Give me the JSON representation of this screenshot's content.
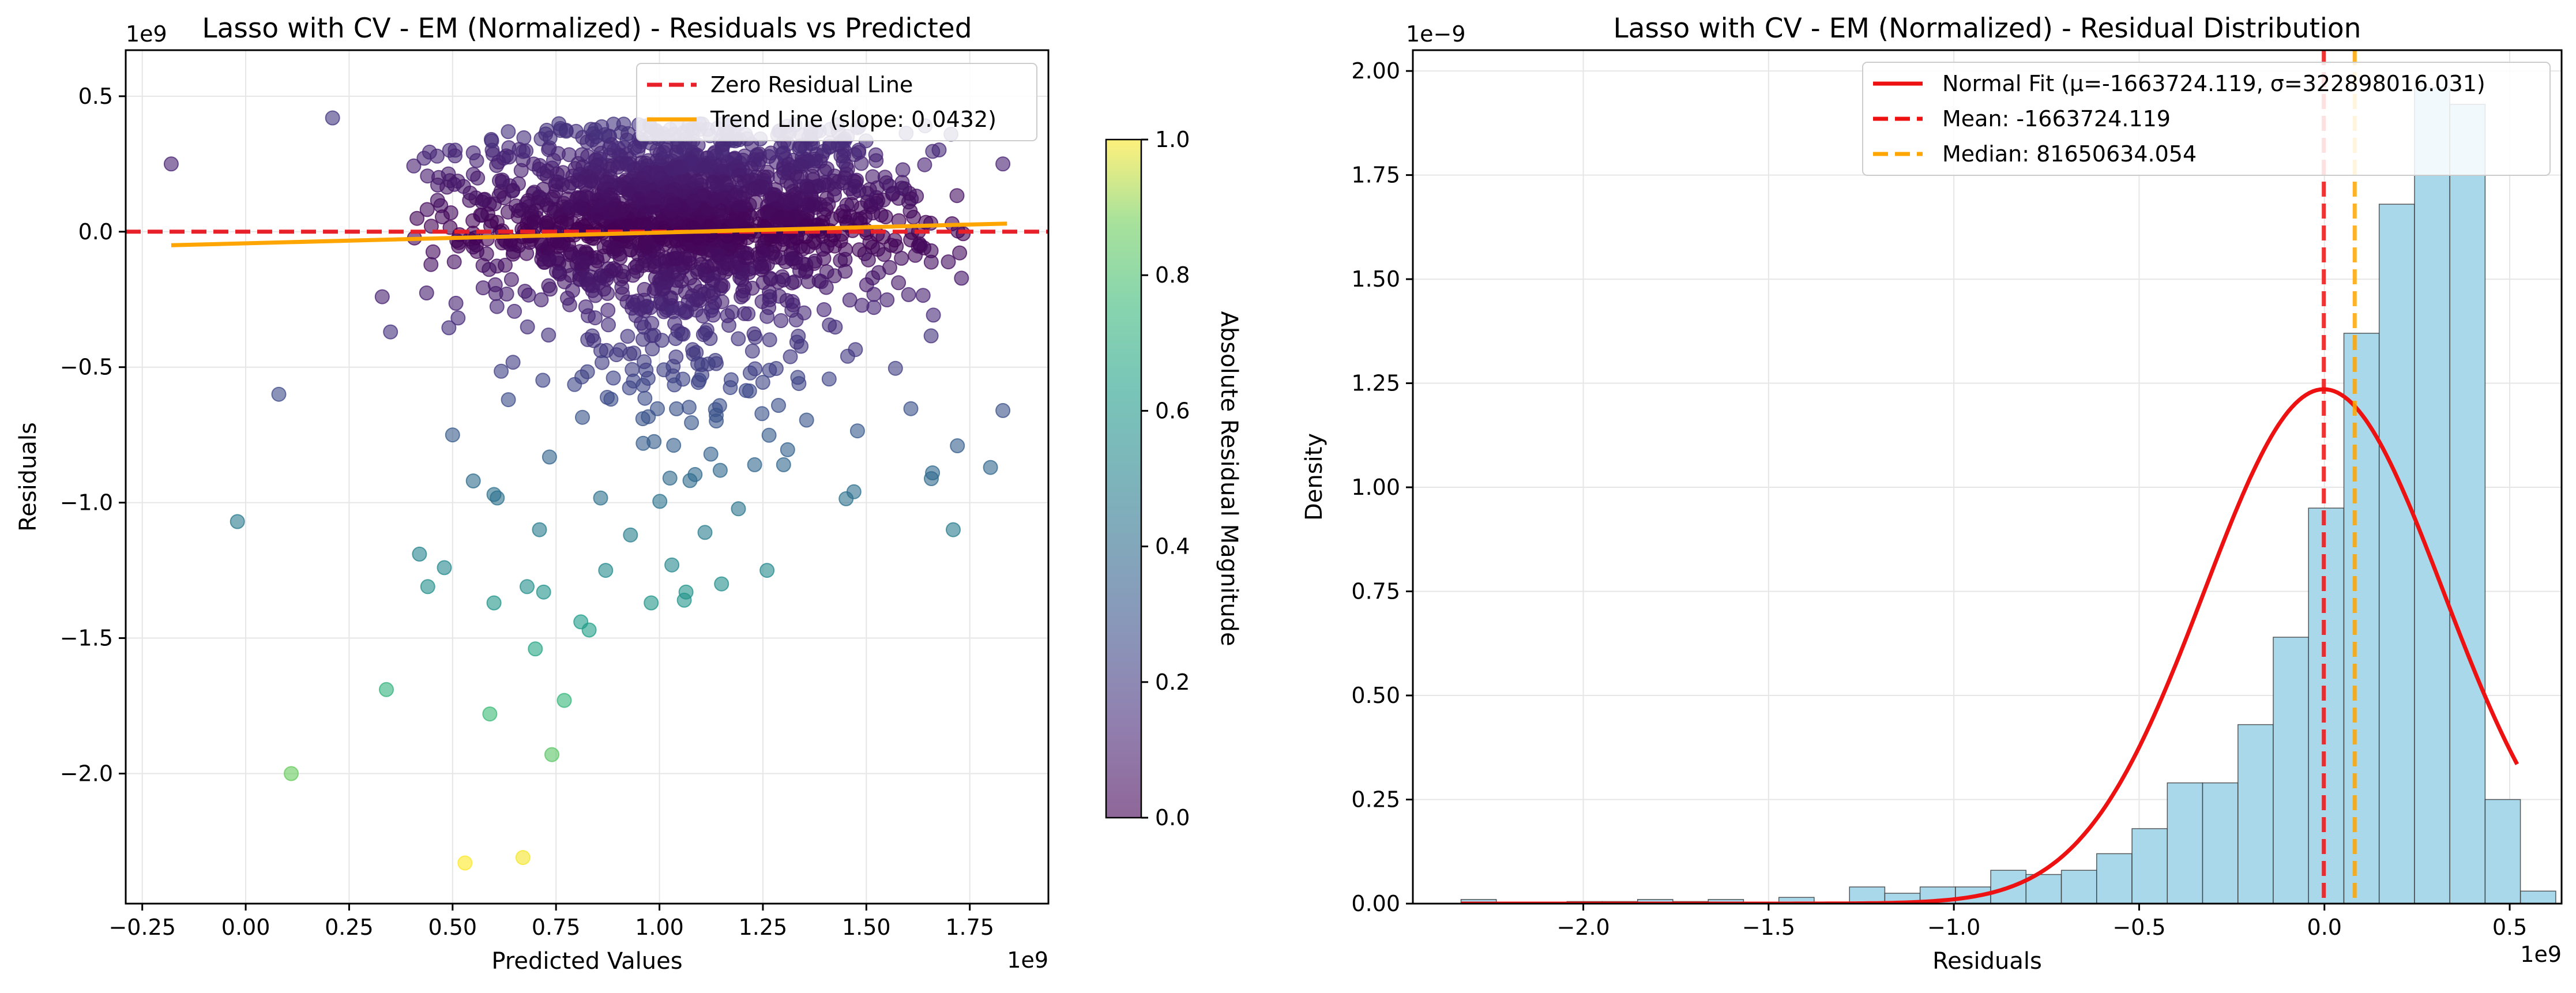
{
  "chart_data": [
    {
      "type": "scatter",
      "title": "Lasso with CV - EM (Normalized) - Residuals vs Predicted",
      "xlabel": "Predicted Values",
      "ylabel": "Residuals",
      "x_offset_label": "1e9",
      "y_offset_label": "1e9",
      "xlim": [
        -0.29,
        1.94
      ],
      "ylim": [
        -2.48,
        0.67
      ],
      "xticks": [
        -0.25,
        0.0,
        0.25,
        0.5,
        0.75,
        1.0,
        1.25,
        1.5,
        1.75
      ],
      "xtick_labels": [
        "−0.25",
        "0.00",
        "0.25",
        "0.50",
        "0.75",
        "1.00",
        "1.25",
        "1.50",
        "1.75"
      ],
      "yticks": [
        -2.0,
        -1.5,
        -1.0,
        -0.5,
        0.0,
        0.5
      ],
      "ytick_labels": [
        "−2.0",
        "−1.5",
        "−1.0",
        "−0.5",
        "0.0",
        "0.5"
      ],
      "grid": true,
      "legend_position": "top-right",
      "legend": [
        {
          "label": "Zero Residual Line",
          "color": "#e8202a",
          "style": "dashed"
        },
        {
          "label": "Trend Line (slope: 0.0432)",
          "color": "#ffa500",
          "style": "solid"
        }
      ],
      "zero_line_y": 0.0,
      "trend_line": {
        "x": [
          -0.18,
          1.84
        ],
        "y": [
          -0.05,
          0.03
        ]
      },
      "colorbar": {
        "label": "Absolute Residual Magnitude",
        "colormap": "viridis",
        "range": [
          0.0,
          1.0
        ],
        "ticks": [
          0.0,
          0.2,
          0.4,
          0.6,
          0.8,
          1.0
        ],
        "tick_labels": [
          "0.0",
          "0.2",
          "0.4",
          "0.6",
          "0.8",
          "1.0"
        ]
      },
      "outlier_points": [
        {
          "x": -0.18,
          "y": 0.25
        },
        {
          "x": 0.21,
          "y": 0.42
        },
        {
          "x": 0.08,
          "y": -0.6
        },
        {
          "x": -0.02,
          "y": -1.07
        },
        {
          "x": 0.11,
          "y": -2.0
        },
        {
          "x": 0.34,
          "y": -1.69
        },
        {
          "x": 0.53,
          "y": -2.33
        },
        {
          "x": 0.67,
          "y": -2.31
        },
        {
          "x": 0.74,
          "y": -1.93
        },
        {
          "x": 0.59,
          "y": -1.78
        },
        {
          "x": 0.77,
          "y": -1.73
        },
        {
          "x": 0.7,
          "y": -1.54
        },
        {
          "x": 0.81,
          "y": -1.44
        },
        {
          "x": 0.83,
          "y": -1.47
        },
        {
          "x": 0.98,
          "y": -1.37
        },
        {
          "x": 1.06,
          "y": -1.36
        },
        {
          "x": 1.15,
          "y": -1.3
        },
        {
          "x": 1.26,
          "y": -1.25
        },
        {
          "x": 1.03,
          "y": -1.23
        },
        {
          "x": 0.87,
          "y": -1.25
        },
        {
          "x": 0.6,
          "y": -1.37
        },
        {
          "x": 0.42,
          "y": -1.19
        },
        {
          "x": 0.48,
          "y": -1.24
        },
        {
          "x": 0.44,
          "y": -1.31
        },
        {
          "x": 0.68,
          "y": -1.31
        },
        {
          "x": 0.72,
          "y": -1.33
        },
        {
          "x": 0.71,
          "y": -1.1
        },
        {
          "x": 1.11,
          "y": -1.11
        },
        {
          "x": 1.71,
          "y": -1.1
        },
        {
          "x": 0.35,
          "y": -0.37
        },
        {
          "x": 0.33,
          "y": -0.24
        },
        {
          "x": 1.83,
          "y": -0.66
        },
        {
          "x": 1.83,
          "y": 0.25
        },
        {
          "x": 1.8,
          "y": -0.87
        },
        {
          "x": 1.72,
          "y": -0.79
        },
        {
          "x": 1.66,
          "y": -0.89
        },
        {
          "x": 1.47,
          "y": -0.96
        },
        {
          "x": 1.23,
          "y": -0.86
        },
        {
          "x": 1.3,
          "y": -0.86
        },
        {
          "x": 0.5,
          "y": -0.75
        },
        {
          "x": 0.55,
          "y": -0.92
        },
        {
          "x": 0.6,
          "y": -0.97
        }
      ],
      "main_cloud": {
        "x_range": [
          0.4,
          1.75
        ],
        "center": {
          "x": 1.05,
          "y": 0.1
        },
        "y_max": 0.4,
        "note": "dense cluster of points, mostly between -0.6 and 0.4"
      }
    },
    {
      "type": "bar",
      "title": "Lasso with CV - EM (Normalized) - Residual Distribution",
      "xlabel": "Residuals",
      "ylabel": "Density",
      "x_offset_label": "1e9",
      "y_offset_label": "1e−9",
      "xlim": [
        -2.46,
        0.64
      ],
      "ylim": [
        0.0,
        2.05
      ],
      "xticks": [
        -2.0,
        -1.5,
        -1.0,
        -0.5,
        0.0,
        0.5
      ],
      "xtick_labels": [
        "−2.0",
        "−1.5",
        "−1.0",
        "−0.5",
        "0.0",
        "0.5"
      ],
      "yticks": [
        0.0,
        0.25,
        0.5,
        0.75,
        1.0,
        1.25,
        1.5,
        1.75,
        2.0
      ],
      "ytick_labels": [
        "0.00",
        "0.25",
        "0.50",
        "0.75",
        "1.00",
        "1.25",
        "1.50",
        "1.75",
        "2.00"
      ],
      "grid": true,
      "legend_position": "top-right",
      "bin_start": -2.33,
      "bin_width": 0.0953,
      "values": [
        0.01,
        0,
        0,
        0.005,
        0.005,
        0.01,
        0.005,
        0.01,
        0,
        0.015,
        0,
        0.04,
        0.025,
        0.04,
        0.04,
        0.08,
        0.07,
        0.08,
        0.12,
        0.18,
        0.29,
        0.29,
        0.43,
        0.64,
        0.95,
        1.37,
        1.68,
        1.96,
        1.92,
        0.25,
        0.03
      ],
      "normal_fit": {
        "mu": -0.0017,
        "sigma": 0.3229,
        "x_range": [
          -2.33,
          0.52
        ]
      },
      "mean_line_x": -0.0017,
      "median_line_x": 0.0817,
      "legend": [
        {
          "label": "Normal Fit (μ=-1663724.119, σ=322898016.031)",
          "color": "#ee1111",
          "style": "solid"
        },
        {
          "label": "Mean: -1663724.119",
          "color": "#ee1111",
          "style": "dashed"
        },
        {
          "label": "Median: 81650634.054",
          "color": "#ffa500",
          "style": "dashed"
        }
      ],
      "bar_color": "#a8d8ea"
    }
  ]
}
